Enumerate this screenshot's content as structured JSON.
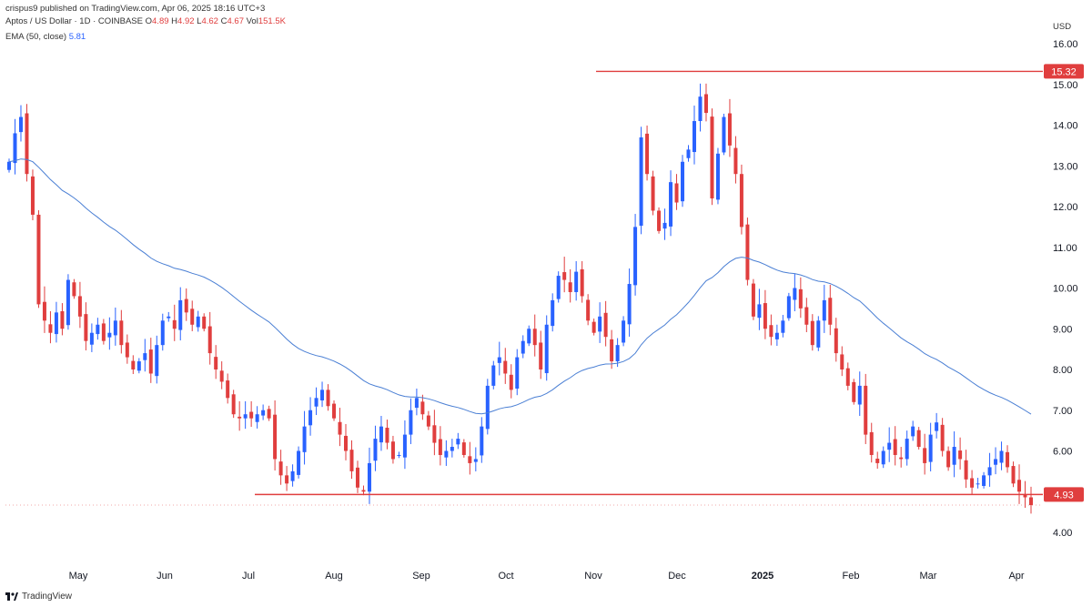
{
  "header": {
    "published": "crispus9 published on TradingView.com, Apr 06, 2025 18:16 UTC+3",
    "symbol": "Aptos / US Dollar · 1D · COINBASE",
    "ohlc": {
      "o_label": "O",
      "o": "4.89",
      "h_label": "H",
      "h": "4.92",
      "l_label": "L",
      "l": "4.62",
      "c_label": "C",
      "c": "4.67",
      "vol_label": "Vol",
      "vol": "151.5K"
    },
    "ema_label": "EMA (50, close)",
    "ema_value": "5.81"
  },
  "currency": "USD",
  "brand": "TradingView",
  "colors": {
    "up": "#2962ff",
    "down": "#e03e3e",
    "ema": "#4a7fd4",
    "level": "#e03e3e"
  },
  "chart_data": {
    "type": "candlestick",
    "y_axis": {
      "min": 3.7,
      "max": 16.4,
      "ticks": [
        "4.00",
        "6.00",
        "7.00",
        "8.00",
        "9.00",
        "10.00",
        "11.00",
        "12.00",
        "13.00",
        "14.00",
        "15.00",
        "16.00"
      ],
      "position": "right"
    },
    "x_axis": {
      "ticks": [
        "May",
        "Jun",
        "Jul",
        "Aug",
        "Sep",
        "Oct",
        "Nov",
        "Dec",
        "2025",
        "Feb",
        "Mar",
        "Apr"
      ]
    },
    "levels": [
      {
        "value": 15.32,
        "label": "15.32"
      },
      {
        "value": 4.93,
        "label": "4.93"
      }
    ],
    "closes": [
      13.1,
      13.8,
      14.2,
      12.8,
      11.8,
      9.6,
      9.2,
      8.9,
      9.4,
      9.0,
      10.2,
      9.8,
      9.3,
      8.7,
      8.9,
      9.1,
      8.7,
      8.9,
      9.2,
      8.6,
      8.3,
      8.0,
      8.2,
      8.4,
      7.9,
      8.6,
      9.2,
      9.3,
      9.0,
      9.7,
      9.4,
      9.1,
      9.3,
      9.0,
      8.4,
      8.0,
      7.7,
      7.3,
      6.9,
      6.8,
      6.9,
      6.8,
      6.9,
      7.0,
      6.8,
      5.8,
      5.4,
      5.2,
      5.5,
      6.0,
      6.6,
      7.0,
      7.3,
      7.5,
      7.1,
      6.8,
      6.4,
      6.0,
      5.5,
      5.1,
      5.0,
      5.7,
      6.3,
      6.6,
      6.2,
      5.8,
      5.9,
      6.4,
      7.0,
      7.3,
      6.9,
      6.6,
      6.2,
      5.9,
      6.0,
      6.1,
      6.3,
      5.9,
      5.7,
      5.8,
      6.6,
      7.6,
      8.1,
      8.3,
      7.9,
      7.5,
      8.3,
      8.7,
      9.0,
      8.6,
      8.0,
      9.1,
      9.7,
      10.3,
      10.2,
      9.9,
      10.4,
      9.8,
      9.2,
      8.9,
      9.3,
      8.8,
      8.2,
      8.6,
      9.2,
      10.1,
      11.5,
      13.7,
      12.8,
      11.9,
      11.4,
      11.6,
      12.6,
      12.1,
      13.1,
      13.4,
      14.1,
      14.7,
      14.3,
      12.2,
      13.3,
      14.2,
      13.5,
      12.8,
      11.5,
      10.2,
      9.3,
      9.6,
      9.0,
      8.8,
      8.9,
      9.2,
      9.8,
      10.0,
      9.5,
      9.1,
      8.6,
      9.2,
      9.7,
      9.1,
      8.4,
      8.0,
      7.6,
      7.2,
      7.6,
      6.4,
      5.9,
      5.7,
      6.0,
      6.2,
      5.9,
      5.8,
      6.3,
      6.6,
      6.1,
      5.7,
      6.4,
      6.7,
      6.0,
      5.6,
      6.1,
      5.8,
      5.3,
      5.1,
      5.2,
      5.4,
      5.6,
      5.8,
      6.0,
      5.6,
      5.2,
      5.0,
      4.86,
      4.67
    ]
  }
}
